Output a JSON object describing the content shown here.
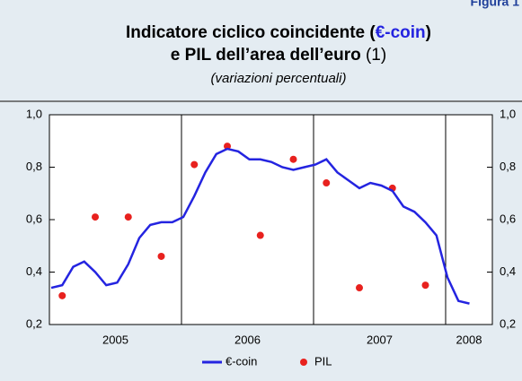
{
  "chart_data": {
    "type": "line",
    "figure_label": "Figura 1",
    "title": [
      "Indicatore ciclico coincidente (",
      "€-coin",
      ")"
    ],
    "title_line2": [
      "e PIL dell’area dell’euro",
      " (1)"
    ],
    "subtitle": "(variazioni percentuali)",
    "years": [
      "2005",
      "2006",
      "2007",
      "2008"
    ],
    "ylim": [
      0.2,
      1.0
    ],
    "yticks": [
      {
        "value": 0.2,
        "label": "0,2"
      },
      {
        "value": 0.4,
        "label": "0,4"
      },
      {
        "value": 0.6,
        "label": "0,6"
      },
      {
        "value": 0.8,
        "label": "0,8"
      },
      {
        "value": 1.0,
        "label": "1,0"
      }
    ],
    "series": [
      {
        "name": "€-coin",
        "type": "line",
        "color": "#2424e0",
        "values": [
          0.34,
          0.35,
          0.42,
          0.44,
          0.4,
          0.35,
          0.36,
          0.43,
          0.53,
          0.58,
          0.59,
          0.59,
          0.61,
          0.69,
          0.78,
          0.85,
          0.87,
          0.86,
          0.83,
          0.83,
          0.82,
          0.8,
          0.79,
          0.8,
          0.81,
          0.83,
          0.78,
          0.75,
          0.72,
          0.74,
          0.73,
          0.71,
          0.65,
          0.63,
          0.59,
          0.54,
          0.38,
          0.29,
          0.28
        ]
      },
      {
        "name": "PIL",
        "type": "scatter",
        "color": "#e8211e",
        "values": [
          null,
          0.31,
          null,
          null,
          0.61,
          null,
          null,
          0.61,
          null,
          null,
          0.46,
          null,
          null,
          0.81,
          null,
          null,
          0.88,
          null,
          null,
          0.54,
          null,
          null,
          0.83,
          null,
          null,
          0.74,
          null,
          null,
          0.34,
          null,
          null,
          0.72,
          null,
          null,
          0.35,
          null,
          null,
          null,
          null
        ]
      }
    ]
  }
}
